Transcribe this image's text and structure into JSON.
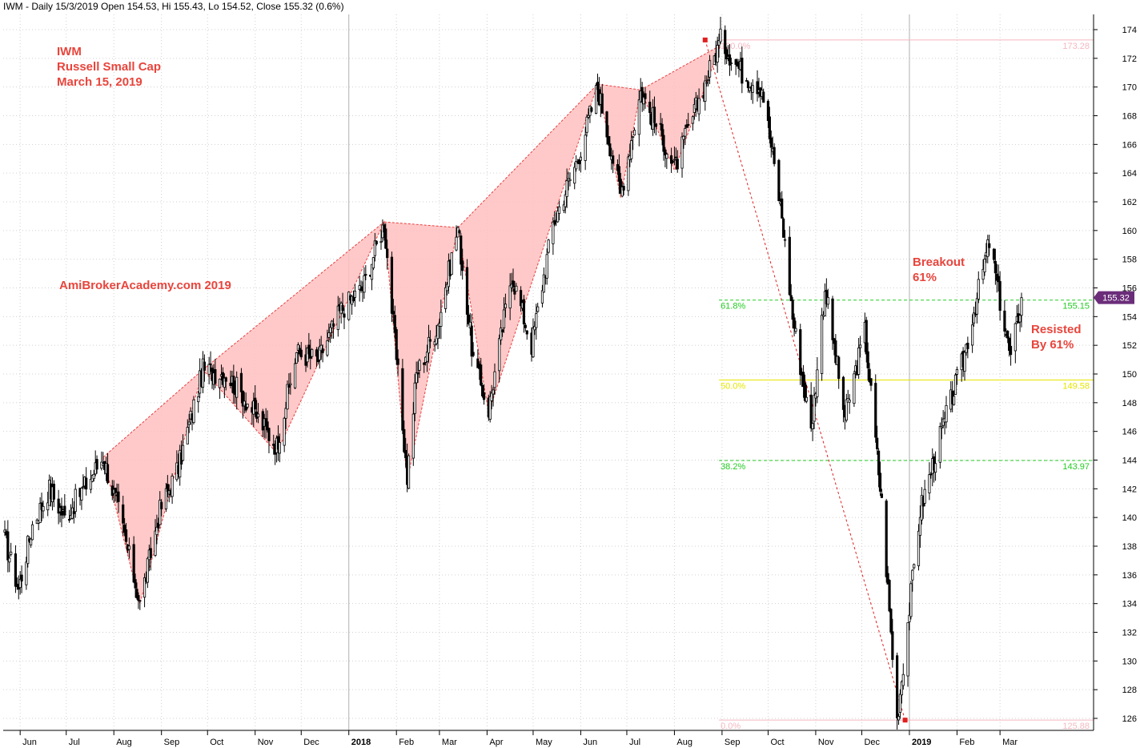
{
  "header": {
    "text": "IWM - Daily 15/3/2019 Open 154.53, Hi 155.43, Lo 154.52, Close 155.32 (0.6%)"
  },
  "annotations": {
    "title_line1": "IWM",
    "title_line2": "Russell Small Cap",
    "title_line3": "March 15, 2019",
    "watermark": "AmiBrokerAcademy.com  2019",
    "breakout_line1": "Breakout",
    "breakout_line2": "61%",
    "resisted_line1": "Resisted",
    "resisted_line2": "By 61%"
  },
  "colors": {
    "candles": "#000000",
    "pattern_fill": "#ffc0c0",
    "pattern_line": "#e84040",
    "annotation_text": "#e8453c",
    "fib_green": "#22cc22",
    "fib_yellow": "#e6e600",
    "fib_pink": "#f4b8c0",
    "price_tag_bg": "#6b2d7a",
    "grid": "#d0d0d0"
  },
  "chart_data": {
    "type": "candlestick",
    "y_axis": {
      "range": [
        125,
        175
      ],
      "ticks": [
        126,
        128,
        130,
        132,
        134,
        136,
        138,
        140,
        142,
        144,
        146,
        148,
        150,
        152,
        154,
        156,
        158,
        160,
        162,
        164,
        166,
        168,
        170,
        172,
        174
      ],
      "position": "right"
    },
    "x_axis": {
      "labels": [
        "Jun",
        "Jul",
        "Aug",
        "Sep",
        "Oct",
        "Nov",
        "Dec",
        "2018",
        "Feb",
        "Mar",
        "Apr",
        "May",
        "Jun",
        "Jul",
        "Aug",
        "Sep",
        "Oct",
        "Nov",
        "Dec",
        "2019",
        "Feb",
        "Mar"
      ]
    },
    "grid": true,
    "last_price_tag": "155.32",
    "price_path": [
      [
        "2017-05-22",
        138.5
      ],
      [
        "2017-05-31",
        135.0
      ],
      [
        "2017-06-09",
        139.5
      ],
      [
        "2017-06-20",
        142.0
      ],
      [
        "2017-06-30",
        140.0
      ],
      [
        "2017-07-12",
        142.0
      ],
      [
        "2017-07-25",
        144.2
      ],
      [
        "2017-08-04",
        140.5
      ],
      [
        "2017-08-18",
        134.0
      ],
      [
        "2017-08-31",
        140.5
      ],
      [
        "2017-09-12",
        143.5
      ],
      [
        "2017-09-28",
        150.3
      ],
      [
        "2017-10-13",
        150.0
      ],
      [
        "2017-10-24",
        148.5
      ],
      [
        "2017-11-15",
        145.0
      ],
      [
        "2017-11-28",
        151.5
      ],
      [
        "2017-12-12",
        151.0
      ],
      [
        "2017-12-27",
        154.5
      ],
      [
        "2018-01-10",
        156.0
      ],
      [
        "2018-01-24",
        160.5
      ],
      [
        "2018-02-08",
        142.8
      ],
      [
        "2018-02-14",
        150.0
      ],
      [
        "2018-02-28",
        153.5
      ],
      [
        "2018-03-13",
        160.2
      ],
      [
        "2018-03-23",
        151.0
      ],
      [
        "2018-04-02",
        147.5
      ],
      [
        "2018-04-17",
        157.0
      ],
      [
        "2018-04-30",
        152.0
      ],
      [
        "2018-05-14",
        160.5
      ],
      [
        "2018-05-30",
        165.0
      ],
      [
        "2018-06-12",
        170.0
      ],
      [
        "2018-06-27",
        162.5
      ],
      [
        "2018-07-10",
        169.7
      ],
      [
        "2018-07-26",
        166.0
      ],
      [
        "2018-08-01",
        164.3
      ],
      [
        "2018-08-15",
        168.5
      ],
      [
        "2018-08-31",
        173.3
      ],
      [
        "2018-09-14",
        171.0
      ],
      [
        "2018-09-27",
        170.0
      ],
      [
        "2018-10-10",
        161.0
      ],
      [
        "2018-10-17",
        154.0
      ],
      [
        "2018-10-29",
        146.0
      ],
      [
        "2018-11-07",
        156.0
      ],
      [
        "2018-11-20",
        147.0
      ],
      [
        "2018-12-03",
        153.0
      ],
      [
        "2018-12-14",
        141.0
      ],
      [
        "2018-12-24",
        125.9
      ],
      [
        "2019-01-08",
        140.5
      ],
      [
        "2019-01-22",
        146.0
      ],
      [
        "2019-02-05",
        151.0
      ],
      [
        "2019-02-22",
        159.2
      ],
      [
        "2019-03-08",
        151.0
      ],
      [
        "2019-03-15",
        155.3
      ]
    ],
    "pattern_points": [
      [
        "2017-07-25",
        144.2
      ],
      [
        "2017-08-18",
        134.0
      ],
      [
        "2017-09-28",
        150.3
      ],
      [
        "2017-11-15",
        144.5
      ],
      [
        "2018-01-24",
        160.6
      ],
      [
        "2018-02-08",
        142.5
      ],
      [
        "2018-03-13",
        160.2
      ],
      [
        "2018-04-02",
        147.3
      ],
      [
        "2018-06-12",
        170.2
      ],
      [
        "2018-06-27",
        162.3
      ],
      [
        "2018-07-10",
        169.8
      ],
      [
        "2018-08-01",
        164.2
      ],
      [
        "2018-08-31",
        172.9
      ]
    ],
    "fibonacci": {
      "high": 173.28,
      "low": 125.88,
      "levels": [
        {
          "label": "100.0%",
          "value": 173.28,
          "value_label": "173.28"
        },
        {
          "label": "61.8%",
          "value": 155.15,
          "value_label": "155.15"
        },
        {
          "label": "50.0%",
          "value": 149.58,
          "value_label": "149.58"
        },
        {
          "label": "38.2%",
          "value": 143.97,
          "value_label": "143.97"
        },
        {
          "label": "0.0%",
          "value": 125.88,
          "value_label": "125.88"
        }
      ]
    }
  }
}
